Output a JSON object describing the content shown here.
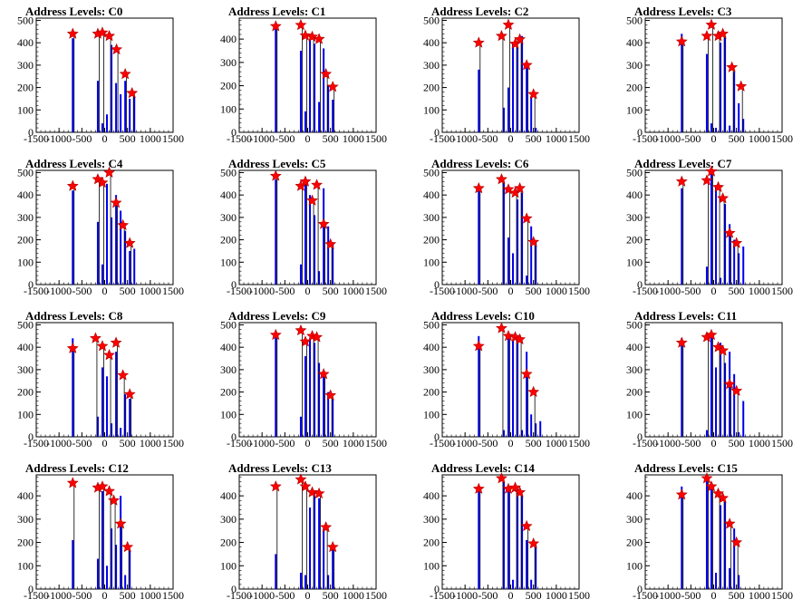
{
  "chart_data": [
    {
      "type": "bar",
      "title": "Address Levels: C0",
      "xlim": [
        -1500,
        1500
      ],
      "ylim": [
        0,
        510
      ],
      "xticks": [
        -1500,
        -1000,
        -500,
        0,
        500,
        1000,
        1500
      ],
      "yticks": [
        0,
        100,
        200,
        300,
        400,
        500
      ],
      "x": [
        -700,
        -150,
        -50,
        50,
        150,
        250,
        350,
        450,
        550,
        650
      ],
      "values": [
        420,
        230,
        40,
        80,
        390,
        220,
        170,
        230,
        150,
        160
      ],
      "peaks": [
        {
          "x": -700,
          "y": 440
        },
        {
          "x": -150,
          "y": 440
        },
        {
          "x": -50,
          "y": 445
        },
        {
          "x": 100,
          "y": 430
        },
        {
          "x": 260,
          "y": 370
        },
        {
          "x": 450,
          "y": 260
        },
        {
          "x": 600,
          "y": 175
        }
      ]
    },
    {
      "type": "bar",
      "title": "Address Levels: C1",
      "xlim": [
        -1500,
        1500
      ],
      "ylim": [
        0,
        490
      ],
      "xticks": [
        -1500,
        -1000,
        -500,
        0,
        500,
        1000,
        1500
      ],
      "yticks": [
        0,
        100,
        200,
        300,
        400
      ],
      "x": [
        -700,
        -150,
        -50,
        50,
        150,
        250,
        350,
        450,
        550
      ],
      "values": [
        450,
        350,
        90,
        400,
        380,
        130,
        360,
        200,
        140
      ],
      "peaks": [
        {
          "x": -700,
          "y": 455
        },
        {
          "x": -150,
          "y": 460
        },
        {
          "x": -50,
          "y": 415
        },
        {
          "x": 100,
          "y": 410
        },
        {
          "x": 250,
          "y": 400
        },
        {
          "x": 400,
          "y": 250
        },
        {
          "x": 550,
          "y": 195
        }
      ]
    },
    {
      "type": "bar",
      "title": "Address Levels: C2",
      "xlim": [
        -1500,
        1500
      ],
      "ylim": [
        0,
        510
      ],
      "xticks": [
        -1500,
        -1000,
        -500,
        0,
        500,
        1000,
        1500
      ],
      "yticks": [
        0,
        100,
        200,
        300,
        400,
        500
      ],
      "x": [
        -700,
        -150,
        -50,
        50,
        150,
        250,
        350,
        450,
        550
      ],
      "values": [
        280,
        110,
        200,
        400,
        380,
        430,
        290,
        160,
        20
      ],
      "peaks": [
        {
          "x": -700,
          "y": 400
        },
        {
          "x": -200,
          "y": 430
        },
        {
          "x": -50,
          "y": 480
        },
        {
          "x": 100,
          "y": 395
        },
        {
          "x": 200,
          "y": 415
        },
        {
          "x": 350,
          "y": 300
        },
        {
          "x": 500,
          "y": 170
        }
      ]
    },
    {
      "type": "bar",
      "title": "Address Levels: C3",
      "xlim": [
        -1500,
        1500
      ],
      "ylim": [
        0,
        510
      ],
      "xticks": [
        -1500,
        -1000,
        -500,
        0,
        500,
        1000,
        1500
      ],
      "yticks": [
        0,
        100,
        200,
        300,
        400,
        500
      ],
      "x": [
        -700,
        -150,
        -50,
        50,
        150,
        250,
        350,
        450,
        550,
        650
      ],
      "values": [
        440,
        350,
        40,
        20,
        400,
        430,
        30,
        270,
        130,
        60
      ],
      "peaks": [
        {
          "x": -700,
          "y": 405
        },
        {
          "x": -150,
          "y": 430
        },
        {
          "x": -50,
          "y": 480
        },
        {
          "x": 100,
          "y": 430
        },
        {
          "x": 200,
          "y": 440
        },
        {
          "x": 400,
          "y": 290
        },
        {
          "x": 600,
          "y": 205
        }
      ]
    },
    {
      "type": "bar",
      "title": "Address Levels: C4",
      "xlim": [
        -1500,
        1500
      ],
      "ylim": [
        0,
        510
      ],
      "xticks": [
        -1500,
        -1000,
        -500,
        0,
        500,
        1000,
        1500
      ],
      "yticks": [
        0,
        100,
        200,
        300,
        400,
        500
      ],
      "x": [
        -700,
        -150,
        -50,
        50,
        150,
        250,
        350,
        450,
        550,
        650
      ],
      "values": [
        420,
        280,
        90,
        450,
        300,
        400,
        330,
        240,
        150,
        160
      ],
      "peaks": [
        {
          "x": -700,
          "y": 440
        },
        {
          "x": -150,
          "y": 470
        },
        {
          "x": -50,
          "y": 455
        },
        {
          "x": 100,
          "y": 500
        },
        {
          "x": 250,
          "y": 365
        },
        {
          "x": 400,
          "y": 265
        },
        {
          "x": 550,
          "y": 185
        }
      ]
    },
    {
      "type": "bar",
      "title": "Address Levels: C5",
      "xlim": [
        -1500,
        1500
      ],
      "ylim": [
        0,
        510
      ],
      "xticks": [
        -1500,
        -1000,
        -500,
        0,
        500,
        1000,
        1500
      ],
      "yticks": [
        0,
        100,
        200,
        300,
        400,
        500
      ],
      "x": [
        -700,
        -150,
        -50,
        50,
        150,
        250,
        350,
        450,
        550
      ],
      "values": [
        470,
        90,
        450,
        400,
        310,
        60,
        430,
        260,
        180
      ],
      "peaks": [
        {
          "x": -700,
          "y": 485
        },
        {
          "x": -150,
          "y": 440
        },
        {
          "x": -50,
          "y": 460
        },
        {
          "x": 100,
          "y": 375
        },
        {
          "x": 200,
          "y": 445
        },
        {
          "x": 350,
          "y": 270
        },
        {
          "x": 500,
          "y": 180
        }
      ]
    },
    {
      "type": "bar",
      "title": "Address Levels: C6",
      "xlim": [
        -1500,
        1500
      ],
      "ylim": [
        0,
        510
      ],
      "xticks": [
        -1500,
        -1000,
        -500,
        0,
        500,
        1000,
        1500
      ],
      "yticks": [
        0,
        100,
        200,
        300,
        400,
        500
      ],
      "x": [
        -700,
        -150,
        -50,
        50,
        150,
        250,
        350,
        450,
        550
      ],
      "values": [
        430,
        460,
        210,
        140,
        380,
        410,
        40,
        260,
        190
      ],
      "peaks": [
        {
          "x": -700,
          "y": 430
        },
        {
          "x": -200,
          "y": 470
        },
        {
          "x": -50,
          "y": 425
        },
        {
          "x": 100,
          "y": 410
        },
        {
          "x": 200,
          "y": 430
        },
        {
          "x": 350,
          "y": 295
        },
        {
          "x": 500,
          "y": 190
        }
      ]
    },
    {
      "type": "bar",
      "title": "Address Levels: C7",
      "xlim": [
        -1500,
        1500
      ],
      "ylim": [
        0,
        510
      ],
      "xticks": [
        -1500,
        -1000,
        -500,
        0,
        500,
        1000,
        1500
      ],
      "yticks": [
        0,
        100,
        200,
        300,
        400,
        500
      ],
      "x": [
        -700,
        -150,
        -50,
        50,
        150,
        250,
        350,
        450,
        550,
        650
      ],
      "values": [
        430,
        80,
        500,
        440,
        30,
        360,
        270,
        200,
        140,
        170
      ],
      "peaks": [
        {
          "x": -700,
          "y": 460
        },
        {
          "x": -150,
          "y": 465
        },
        {
          "x": -50,
          "y": 505
        },
        {
          "x": 100,
          "y": 435
        },
        {
          "x": 200,
          "y": 385
        },
        {
          "x": 350,
          "y": 230
        },
        {
          "x": 500,
          "y": 185
        }
      ]
    },
    {
      "type": "bar",
      "title": "Address Levels: C8",
      "xlim": [
        -1500,
        1500
      ],
      "ylim": [
        0,
        510
      ],
      "xticks": [
        -1500,
        -1000,
        -500,
        0,
        500,
        1000,
        1500
      ],
      "yticks": [
        0,
        100,
        200,
        300,
        400,
        500
      ],
      "x": [
        -700,
        -150,
        -50,
        50,
        150,
        250,
        350,
        450,
        550
      ],
      "values": [
        440,
        90,
        310,
        270,
        60,
        380,
        40,
        190,
        170
      ],
      "peaks": [
        {
          "x": -700,
          "y": 395
        },
        {
          "x": -200,
          "y": 440
        },
        {
          "x": -50,
          "y": 405
        },
        {
          "x": 100,
          "y": 365
        },
        {
          "x": 250,
          "y": 420
        },
        {
          "x": 400,
          "y": 275
        },
        {
          "x": 550,
          "y": 190
        }
      ]
    },
    {
      "type": "bar",
      "title": "Address Levels: C9",
      "xlim": [
        -1500,
        1500
      ],
      "ylim": [
        0,
        510
      ],
      "xticks": [
        -1500,
        -1000,
        -500,
        0,
        500,
        1000,
        1500
      ],
      "yticks": [
        0,
        100,
        200,
        300,
        400,
        500
      ],
      "x": [
        -700,
        -150,
        -50,
        50,
        150,
        250,
        350,
        450,
        550
      ],
      "values": [
        450,
        90,
        360,
        440,
        420,
        330,
        280,
        200,
        170
      ],
      "peaks": [
        {
          "x": -700,
          "y": 455
        },
        {
          "x": -150,
          "y": 475
        },
        {
          "x": -50,
          "y": 425
        },
        {
          "x": 100,
          "y": 450
        },
        {
          "x": 200,
          "y": 445
        },
        {
          "x": 350,
          "y": 280
        },
        {
          "x": 500,
          "y": 185
        }
      ]
    },
    {
      "type": "bar",
      "title": "Address Levels: C10",
      "xlim": [
        -1500,
        1500
      ],
      "ylim": [
        0,
        510
      ],
      "xticks": [
        -1500,
        -1000,
        -500,
        0,
        500,
        1000,
        1500
      ],
      "yticks": [
        0,
        100,
        200,
        300,
        400,
        500
      ],
      "x": [
        -700,
        -150,
        -50,
        50,
        150,
        250,
        350,
        450,
        550,
        650
      ],
      "values": [
        450,
        30,
        460,
        430,
        440,
        30,
        380,
        100,
        60,
        70
      ],
      "peaks": [
        {
          "x": -700,
          "y": 405
        },
        {
          "x": -200,
          "y": 485
        },
        {
          "x": -50,
          "y": 450
        },
        {
          "x": 100,
          "y": 445
        },
        {
          "x": 200,
          "y": 435
        },
        {
          "x": 350,
          "y": 280
        },
        {
          "x": 500,
          "y": 200
        }
      ]
    },
    {
      "type": "bar",
      "title": "Address Levels: C11",
      "xlim": [
        -1500,
        1500
      ],
      "ylim": [
        0,
        510
      ],
      "xticks": [
        -1500,
        -1000,
        -500,
        0,
        500,
        1000,
        1500
      ],
      "yticks": [
        0,
        100,
        200,
        300,
        400,
        500
      ],
      "x": [
        -700,
        -150,
        -50,
        50,
        150,
        250,
        350,
        450,
        550,
        650
      ],
      "values": [
        440,
        30,
        470,
        310,
        420,
        330,
        380,
        280,
        20,
        160
      ],
      "peaks": [
        {
          "x": -700,
          "y": 420
        },
        {
          "x": -150,
          "y": 445
        },
        {
          "x": -50,
          "y": 455
        },
        {
          "x": 100,
          "y": 400
        },
        {
          "x": 200,
          "y": 385
        },
        {
          "x": 350,
          "y": 235
        },
        {
          "x": 500,
          "y": 205
        }
      ]
    },
    {
      "type": "bar",
      "title": "Address Levels: C12",
      "xlim": [
        -1500,
        1500
      ],
      "ylim": [
        0,
        490
      ],
      "xticks": [
        -1500,
        -1000,
        -500,
        0,
        500,
        1000,
        1500
      ],
      "yticks": [
        0,
        100,
        200,
        300,
        400
      ],
      "x": [
        -700,
        -150,
        -50,
        50,
        150,
        250,
        350,
        450,
        550
      ],
      "values": [
        210,
        130,
        420,
        100,
        260,
        190,
        400,
        60,
        170
      ],
      "peaks": [
        {
          "x": -700,
          "y": 455
        },
        {
          "x": -150,
          "y": 435
        },
        {
          "x": -50,
          "y": 440
        },
        {
          "x": 100,
          "y": 420
        },
        {
          "x": 200,
          "y": 380
        },
        {
          "x": 350,
          "y": 280
        },
        {
          "x": 500,
          "y": 180
        }
      ]
    },
    {
      "type": "bar",
      "title": "Address Levels: C13",
      "xlim": [
        -1500,
        1500
      ],
      "ylim": [
        0,
        490
      ],
      "xticks": [
        -1500,
        -1000,
        -500,
        0,
        500,
        1000,
        1500
      ],
      "yticks": [
        0,
        100,
        200,
        300,
        400
      ],
      "x": [
        -700,
        -150,
        -50,
        50,
        150,
        250,
        350,
        450,
        550
      ],
      "values": [
        150,
        70,
        60,
        350,
        420,
        390,
        260,
        60,
        170
      ],
      "peaks": [
        {
          "x": -700,
          "y": 440
        },
        {
          "x": -150,
          "y": 470
        },
        {
          "x": -50,
          "y": 440
        },
        {
          "x": 100,
          "y": 415
        },
        {
          "x": 250,
          "y": 410
        },
        {
          "x": 400,
          "y": 265
        },
        {
          "x": 550,
          "y": 180
        }
      ]
    },
    {
      "type": "bar",
      "title": "Address Levels: C14",
      "xlim": [
        -1500,
        1500
      ],
      "ylim": [
        0,
        490
      ],
      "xticks": [
        -1500,
        -1000,
        -500,
        0,
        500,
        1000,
        1500
      ],
      "yticks": [
        0,
        100,
        200,
        300,
        400
      ],
      "x": [
        -700,
        -150,
        -50,
        50,
        150,
        250,
        350,
        450,
        550
      ],
      "values": [
        430,
        460,
        430,
        40,
        430,
        400,
        210,
        40,
        190
      ],
      "peaks": [
        {
          "x": -700,
          "y": 430
        },
        {
          "x": -200,
          "y": 475
        },
        {
          "x": -50,
          "y": 430
        },
        {
          "x": 100,
          "y": 435
        },
        {
          "x": 200,
          "y": 415
        },
        {
          "x": 350,
          "y": 270
        },
        {
          "x": 500,
          "y": 195
        }
      ]
    },
    {
      "type": "bar",
      "title": "Address Levels: C15",
      "xlim": [
        -1500,
        1500
      ],
      "ylim": [
        0,
        490
      ],
      "xticks": [
        -1500,
        -1000,
        -500,
        0,
        500,
        1000,
        1500
      ],
      "yticks": [
        0,
        100,
        200,
        300,
        400
      ],
      "x": [
        -700,
        -150,
        -50,
        50,
        150,
        250,
        350,
        450,
        550
      ],
      "values": [
        440,
        480,
        430,
        70,
        360,
        380,
        90,
        260,
        60
      ],
      "peaks": [
        {
          "x": -700,
          "y": 405
        },
        {
          "x": -150,
          "y": 475
        },
        {
          "x": -50,
          "y": 440
        },
        {
          "x": 100,
          "y": 410
        },
        {
          "x": 200,
          "y": 390
        },
        {
          "x": 350,
          "y": 280
        },
        {
          "x": 500,
          "y": 200
        }
      ]
    }
  ]
}
